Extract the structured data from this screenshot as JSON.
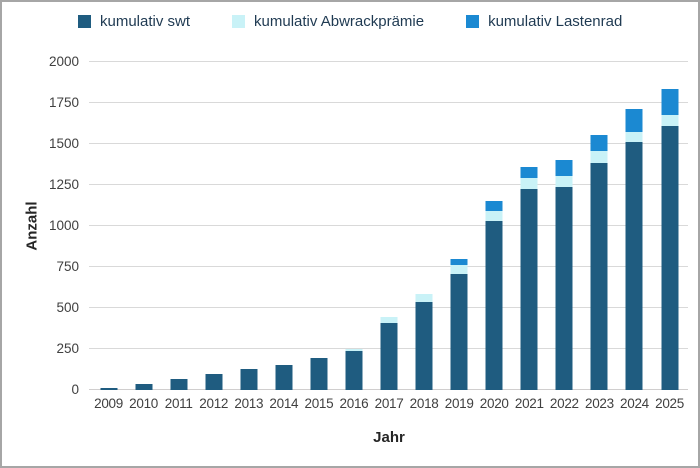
{
  "colors": {
    "swt": "#1f5c80",
    "abwrackpraemie": "#c9f2f7",
    "lastenrad": "#1b89d2",
    "gridline": "#d9d9d9",
    "axis_line": "#d0cece",
    "tick_text": "#404040",
    "title_text": "#262626",
    "legend_text": "#1f3a52",
    "frame_border": "#a6a6a6"
  },
  "legend": {
    "items": [
      {
        "label": "kumulativ swt",
        "color": "#1f5c80"
      },
      {
        "label": "kumulativ Abwrackprämie",
        "color": "#c9f2f7"
      },
      {
        "label": "kumulativ Lastenrad",
        "color": "#1b89d2"
      }
    ]
  },
  "chart_data": {
    "type": "bar",
    "stacked": true,
    "title": "",
    "xlabel": "Jahr",
    "ylabel": "Anzahl",
    "ylim": [
      0,
      2000
    ],
    "ytick_step": 250,
    "yticks": [
      "0",
      "250",
      "500",
      "750",
      "1000",
      "1250",
      "1500",
      "1750",
      "2000"
    ],
    "grid": true,
    "legend_position": "top",
    "categories": [
      "2009",
      "2010",
      "2011",
      "2012",
      "2013",
      "2014",
      "2015",
      "2016",
      "2017",
      "2018",
      "2019",
      "2020",
      "2021",
      "2022",
      "2023",
      "2024",
      "2025"
    ],
    "series": [
      {
        "name": "kumulativ swt",
        "color": "#1f5c80",
        "values": [
          15,
          35,
          70,
          100,
          130,
          150,
          195,
          235,
          410,
          535,
          705,
          1030,
          1225,
          1235,
          1385,
          1515,
          1610
        ]
      },
      {
        "name": "kumulativ Abwrackprämie",
        "color": "#c9f2f7",
        "values": [
          0,
          0,
          0,
          0,
          0,
          0,
          0,
          15,
          35,
          50,
          55,
          60,
          65,
          70,
          70,
          60,
          65
        ]
      },
      {
        "name": "kumulativ Lastenrad",
        "color": "#1b89d2",
        "values": [
          0,
          0,
          0,
          0,
          0,
          0,
          0,
          0,
          0,
          0,
          40,
          65,
          70,
          95,
          100,
          140,
          160
        ]
      }
    ]
  }
}
